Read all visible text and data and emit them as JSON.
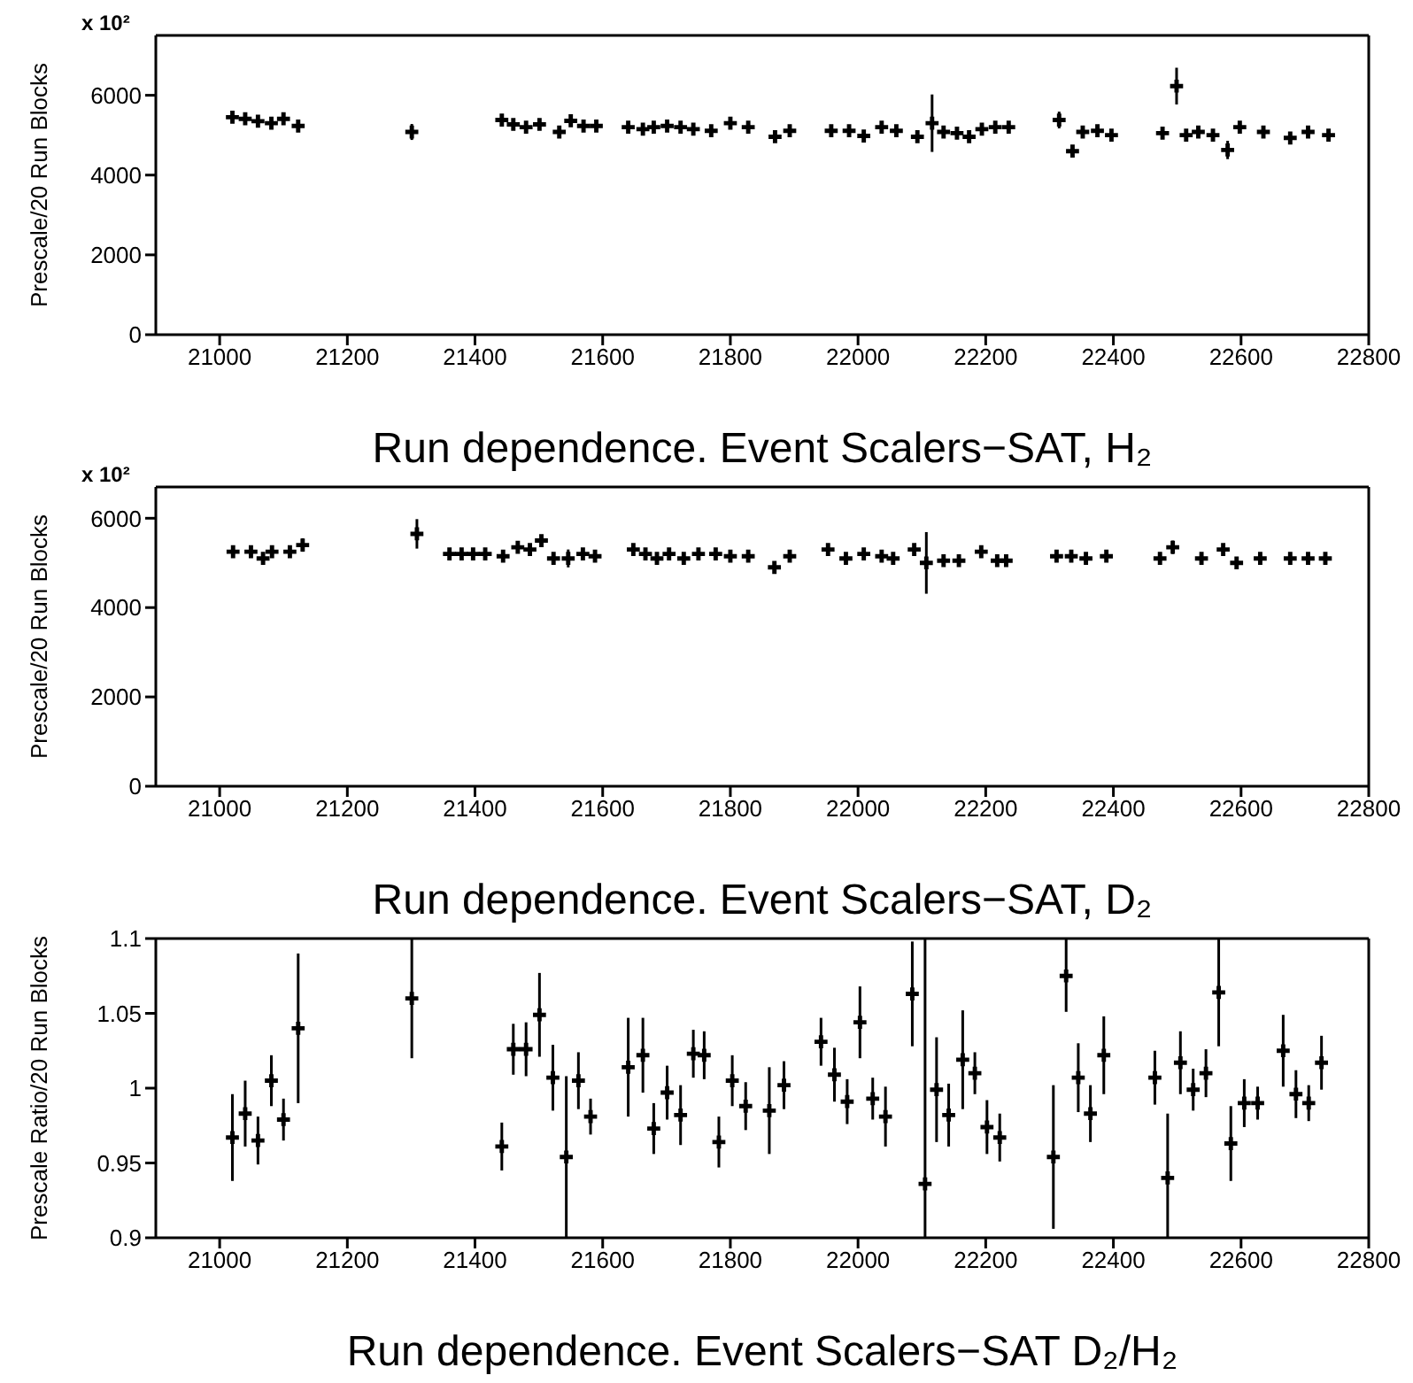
{
  "chart_data": [
    {
      "type": "scatter",
      "color": "#000000",
      "marker": "cross",
      "xlabel": "Run dependence. Event Scalers−SAT, H₂",
      "ylabel": "Prescale/20 Run Blocks",
      "annotations": [
        "x 10²"
      ],
      "xlim": [
        20900,
        22800
      ],
      "ylim": [
        0,
        7500
      ],
      "xticks": [
        21000,
        21200,
        21400,
        21600,
        21800,
        22000,
        22200,
        22400,
        22600,
        22800
      ],
      "yticks": [
        0,
        2000,
        4000,
        6000
      ],
      "x": [
        21020,
        21040,
        21060,
        21081,
        21100,
        21123,
        21301,
        21442,
        21460,
        21480,
        21501,
        21532,
        21550,
        21570,
        21590,
        21640,
        21663,
        21680,
        21701,
        21722,
        21742,
        21770,
        21800,
        21828,
        21870,
        21893,
        21958,
        21986,
        22009,
        22037,
        22060,
        22093,
        22116,
        22134,
        22155,
        22174,
        22194,
        22215,
        22236,
        22315,
        22336,
        22352,
        22375,
        22397,
        22477,
        22499,
        22514,
        22533,
        22556,
        22579,
        22598,
        22635,
        22677,
        22705,
        22737
      ],
      "values": [
        5450,
        5410,
        5350,
        5300,
        5410,
        5230,
        5080,
        5380,
        5270,
        5200,
        5270,
        5080,
        5360,
        5230,
        5230,
        5200,
        5150,
        5200,
        5230,
        5200,
        5150,
        5110,
        5300,
        5200,
        4960,
        5110,
        5110,
        5110,
        4980,
        5200,
        5110,
        4960,
        5300,
        5080,
        5050,
        4960,
        5150,
        5200,
        5200,
        5380,
        4600,
        5080,
        5110,
        5000,
        5050,
        6230,
        5000,
        5080,
        5000,
        4630,
        5200,
        5080,
        4930,
        5080,
        5000
      ],
      "errors": [
        null,
        null,
        null,
        null,
        null,
        80,
        200,
        null,
        null,
        null,
        null,
        null,
        120,
        null,
        null,
        null,
        null,
        null,
        null,
        null,
        null,
        null,
        null,
        null,
        80,
        null,
        null,
        null,
        null,
        null,
        null,
        80,
        720,
        null,
        null,
        null,
        null,
        null,
        null,
        210,
        150,
        null,
        null,
        null,
        null,
        460,
        null,
        null,
        null,
        230,
        null,
        null,
        null,
        null,
        null
      ]
    },
    {
      "type": "scatter",
      "color": "#000000",
      "marker": "cross",
      "xlabel": "Run dependence. Event Scalers−SAT, D₂",
      "ylabel": "Prescale/20 Run Blocks",
      "annotations": [
        "x 10²"
      ],
      "xlim": [
        20900,
        22800
      ],
      "ylim": [
        0,
        6700
      ],
      "xticks": [
        21000,
        21200,
        21400,
        21600,
        21800,
        22000,
        22200,
        22400,
        22600,
        22800
      ],
      "yticks": [
        0,
        2000,
        4000,
        6000
      ],
      "x": [
        21021,
        21049,
        21068,
        21082,
        21110,
        21130,
        21309,
        21360,
        21379,
        21397,
        21416,
        21444,
        21467,
        21486,
        21504,
        21523,
        21546,
        21569,
        21588,
        21648,
        21667,
        21685,
        21704,
        21727,
        21750,
        21777,
        21800,
        21828,
        21869,
        21893,
        21953,
        21981,
        22009,
        22037,
        22055,
        22088,
        22107,
        22134,
        22158,
        22193,
        22218,
        22232,
        22311,
        22334,
        22357,
        22389,
        22473,
        22493,
        22538,
        22572,
        22593,
        22630,
        22677,
        22705,
        22732
      ],
      "values": [
        5250,
        5250,
        5100,
        5250,
        5250,
        5400,
        5650,
        5200,
        5200,
        5200,
        5200,
        5150,
        5350,
        5300,
        5500,
        5100,
        5100,
        5200,
        5150,
        5300,
        5200,
        5100,
        5200,
        5100,
        5200,
        5200,
        5150,
        5150,
        4900,
        5150,
        5300,
        5100,
        5200,
        5150,
        5100,
        5300,
        5000,
        5050,
        5050,
        5250,
        5050,
        5050,
        5150,
        5150,
        5100,
        5150,
        5100,
        5350,
        5100,
        5300,
        5000,
        5100,
        5100,
        5100,
        5100
      ],
      "errors": [
        null,
        null,
        null,
        null,
        null,
        150,
        330,
        null,
        null,
        null,
        null,
        null,
        null,
        null,
        100,
        null,
        200,
        null,
        null,
        null,
        null,
        null,
        null,
        null,
        null,
        null,
        null,
        null,
        100,
        null,
        null,
        null,
        null,
        null,
        null,
        100,
        690,
        null,
        null,
        null,
        null,
        null,
        null,
        null,
        null,
        null,
        null,
        150,
        null,
        100,
        null,
        null,
        null,
        null,
        null
      ]
    },
    {
      "type": "scatter",
      "color": "#000000",
      "marker": "cross",
      "xlabel": "Run dependence. Event Scalers−SAT D₂/H₂",
      "ylabel": "Prescale Ratio/20 Run Blocks",
      "xlim": [
        20900,
        22800
      ],
      "ylim": [
        0.9,
        1.1
      ],
      "xticks": [
        21000,
        21200,
        21400,
        21600,
        21800,
        22000,
        22200,
        22400,
        22600,
        22800
      ],
      "yticks": [
        0.9,
        0.95,
        1,
        1.05,
        1.1
      ],
      "x": [
        21020,
        21040,
        21060,
        21081,
        21100,
        21123,
        21301,
        21442,
        21460,
        21480,
        21501,
        21522,
        21543,
        21562,
        21581,
        21640,
        21663,
        21680,
        21701,
        21722,
        21742,
        21759,
        21782,
        21803,
        21824,
        21861,
        21884,
        21942,
        21963,
        21983,
        22003,
        22023,
        22043,
        22085,
        22105,
        22123,
        22142,
        22164,
        22183,
        22202,
        22222,
        22306,
        22326,
        22345,
        22364,
        22385,
        22465,
        22485,
        22505,
        22525,
        22545,
        22565,
        22584,
        22605,
        22626,
        22666,
        22686,
        22706,
        22726
      ],
      "values": [
        0.967,
        0.983,
        0.965,
        1.005,
        0.979,
        1.04,
        1.06,
        0.961,
        1.026,
        1.026,
        1.049,
        1.007,
        0.954,
        1.005,
        0.981,
        1.014,
        1.022,
        0.973,
        0.997,
        0.982,
        1.023,
        1.022,
        0.964,
        1.005,
        0.988,
        0.985,
        1.002,
        1.031,
        1.009,
        0.991,
        1.044,
        0.993,
        0.981,
        1.063,
        0.936,
        0.999,
        0.982,
        1.019,
        1.01,
        0.974,
        0.967,
        0.954,
        1.075,
        1.007,
        0.983,
        1.022,
        1.007,
        0.94,
        1.017,
        0.999,
        1.01,
        1.064,
        0.963,
        0.99,
        0.99,
        1.025,
        0.996,
        0.99,
        1.017
      ],
      "errors": [
        0.029,
        0.022,
        0.016,
        0.017,
        0.014,
        0.05,
        [
          1.02,
          1.1
        ],
        0.016,
        0.017,
        0.018,
        0.028,
        0.022,
        0.054,
        0.019,
        0.012,
        0.033,
        0.025,
        0.017,
        0.018,
        0.02,
        0.016,
        0.016,
        0.017,
        0.017,
        0.016,
        0.029,
        0.016,
        0.016,
        0.018,
        0.015,
        0.024,
        0.014,
        0.02,
        0.035,
        [
          0.9,
          1.1
        ],
        0.035,
        0.021,
        0.033,
        0.014,
        0.018,
        0.016,
        0.048,
        [
          1.051,
          1.1
        ],
        0.023,
        0.019,
        0.026,
        0.018,
        [
          0.9,
          0.983
        ],
        0.021,
        0.014,
        0.016,
        [
          1.028,
          1.1
        ],
        0.025,
        0.016,
        0.011,
        0.024,
        0.016,
        0.012,
        0.018
      ]
    }
  ]
}
